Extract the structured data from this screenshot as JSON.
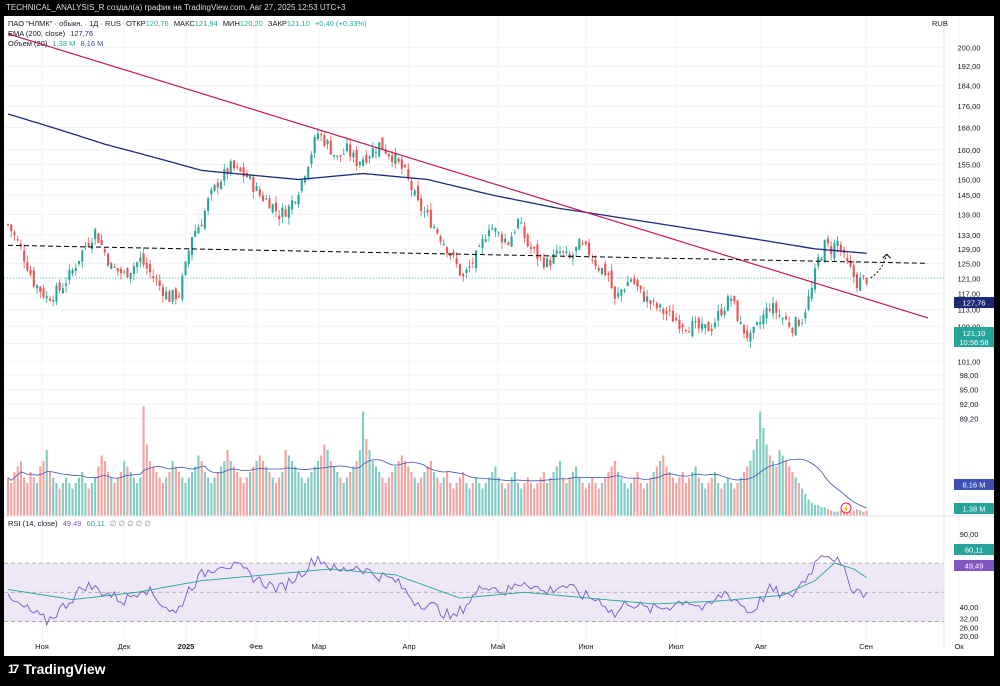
{
  "header": {
    "caption": "TECHNICAL_ANALYSIS_R создал(а) график на TradingView.com, Авг 27, 2025 12:53 UTC+3"
  },
  "legend": {
    "symbol": "ПАО \"НЛМК\" · обыкн. · 1Д · RUS",
    "open_label": "ОТКР",
    "open": "120,76",
    "high_label": "МАКС",
    "high": "121,94",
    "low_label": "МИН",
    "low": "120,20",
    "close_label": "ЗАКР",
    "close": "121,10",
    "change": "+0,40 (+0,33%)",
    "ema_label": "EMA (200, close)",
    "ema_value": "127,76",
    "vol_label": "Объем (20)",
    "vol_value_1": "1,38 M",
    "vol_value_2": "8,16 M",
    "rsi_label": "RSI (14, close)",
    "rsi_value_1": "49,49",
    "rsi_value_2": "60,11",
    "rsi_extra": "∅ ∅ ∅ ∅ ∅"
  },
  "currency": "RUB",
  "badges": {
    "price": "121,10",
    "countdown": "10:56:58",
    "ema": "127,76",
    "vol_ma": "8,16 M",
    "vol": "1,38 M",
    "rsi_ma": "60,11",
    "rsi": "49,49"
  },
  "branding": {
    "name": "TradingView",
    "mark": "17"
  },
  "colors": {
    "up": "#26a69a",
    "down": "#ef5350",
    "ema": "#1e2a78",
    "trendline": "#c2185b",
    "rsi_line": "#7e57c2",
    "rsi_ma": "#26a69a",
    "vol_ma": "#3f51b5",
    "rsi_band": "#ede7f6"
  },
  "chart_data": [
    {
      "type": "candlestick",
      "title": "ПАО \"НЛМК\" · обыкн. · 1Д · RUS",
      "currency": "RUB",
      "y_scale": "log",
      "ylim": [
        84,
        205
      ],
      "y_ticks": [
        "200,00",
        "192,00",
        "184,00",
        "176,00",
        "168,00",
        "160,00",
        "155,00",
        "150,00",
        "145,00",
        "139,00",
        "133,00",
        "129,00",
        "125,00",
        "121,00",
        "117,00",
        "113,00",
        "109,00",
        "105,00",
        "101,00",
        "98,00",
        "95,00",
        "92,00",
        "89,20"
      ],
      "x_ticks": [
        "Ноя",
        "Дек",
        "2025",
        "Фев",
        "Мар",
        "Апр",
        "Май",
        "Июн",
        "Июл",
        "Авг",
        "Сен",
        "Ок"
      ],
      "path": [
        [
          0,
          136
        ],
        [
          4,
          129
        ],
        [
          8,
          120
        ],
        [
          12,
          116
        ],
        [
          16,
          118
        ],
        [
          20,
          123
        ],
        [
          24,
          130
        ],
        [
          27,
          134
        ],
        [
          32,
          124
        ],
        [
          36,
          122
        ],
        [
          41,
          126
        ],
        [
          46,
          120
        ],
        [
          50,
          116
        ],
        [
          53,
          117
        ],
        [
          55,
          124
        ],
        [
          57,
          133
        ],
        [
          60,
          137
        ],
        [
          62,
          143
        ],
        [
          65,
          149
        ],
        [
          69,
          154
        ],
        [
          74,
          151
        ],
        [
          78,
          145
        ],
        [
          81,
          143
        ],
        [
          84,
          139
        ],
        [
          87,
          141
        ],
        [
          90,
          147
        ],
        [
          93,
          156
        ],
        [
          96,
          166
        ],
        [
          99,
          162
        ],
        [
          102,
          157
        ],
        [
          105,
          160
        ],
        [
          108,
          156
        ],
        [
          111,
          158
        ],
        [
          115,
          162
        ],
        [
          119,
          158
        ],
        [
          123,
          152
        ],
        [
          127,
          142
        ],
        [
          131,
          137
        ],
        [
          135,
          131
        ],
        [
          138,
          126
        ],
        [
          141,
          121
        ],
        [
          143,
          124
        ],
        [
          146,
          128
        ],
        [
          149,
          136
        ],
        [
          152,
          133
        ],
        [
          155,
          131
        ],
        [
          158,
          137
        ],
        [
          161,
          130
        ],
        [
          164,
          127
        ],
        [
          167,
          125
        ],
        [
          171,
          128
        ],
        [
          174,
          126
        ],
        [
          177,
          130
        ],
        [
          180,
          128
        ],
        [
          183,
          124
        ],
        [
          186,
          122
        ],
        [
          188,
          115
        ],
        [
          190,
          118
        ],
        [
          193,
          121
        ],
        [
          196,
          117
        ],
        [
          200,
          114
        ],
        [
          204,
          112
        ],
        [
          208,
          110
        ],
        [
          212,
          109
        ],
        [
          215,
          108
        ],
        [
          218,
          109
        ],
        [
          221,
          113
        ],
        [
          224,
          116
        ],
        [
          227,
          109
        ],
        [
          230,
          106
        ],
        [
          233,
          110
        ],
        [
          236,
          114
        ],
        [
          240,
          111
        ],
        [
          243,
          109
        ],
        [
          246,
          111
        ],
        [
          249,
          118
        ],
        [
          251,
          126
        ],
        [
          253,
          130
        ],
        [
          255,
          129
        ],
        [
          257,
          131
        ],
        [
          259,
          126
        ],
        [
          261,
          123
        ],
        [
          263,
          120
        ],
        [
          266,
          121
        ]
      ],
      "ema200": [
        [
          0,
          173
        ],
        [
          30,
          162
        ],
        [
          60,
          153
        ],
        [
          90,
          150
        ],
        [
          110,
          152
        ],
        [
          130,
          150
        ],
        [
          150,
          145
        ],
        [
          170,
          141
        ],
        [
          190,
          138
        ],
        [
          210,
          135
        ],
        [
          230,
          132
        ],
        [
          250,
          129
        ],
        [
          266,
          127.76
        ]
      ],
      "trendline": {
        "start": [
          0,
          206
        ],
        "end": [
          285,
          111
        ]
      },
      "resistance_line": {
        "start": [
          0,
          130
        ],
        "end": [
          285,
          125
        ]
      },
      "last_close": 121.1
    },
    {
      "type": "bar",
      "title": "Объем (20)",
      "values_note": "relative volume (max = 1)",
      "volumes": [
        0.35,
        0.3,
        0.4,
        0.45,
        0.5,
        0.35,
        0.3,
        0.4,
        0.35,
        0.3,
        0.45,
        0.5,
        0.6,
        0.4,
        0.35,
        0.3,
        0.25,
        0.3,
        0.35,
        0.3,
        0.25,
        0.3,
        0.35,
        0.4,
        0.3,
        0.25,
        0.3,
        0.35,
        0.45,
        0.55,
        0.5,
        0.4,
        0.35,
        0.3,
        0.35,
        0.4,
        0.5,
        0.45,
        0.4,
        0.35,
        0.3,
        0.35,
        1.0,
        0.65,
        0.5,
        0.45,
        0.4,
        0.35,
        0.3,
        0.35,
        0.4,
        0.5,
        0.45,
        0.4,
        0.35,
        0.3,
        0.35,
        0.4,
        0.45,
        0.55,
        0.5,
        0.4,
        0.35,
        0.3,
        0.35,
        0.4,
        0.45,
        0.5,
        0.6,
        0.5,
        0.45,
        0.4,
        0.35,
        0.3,
        0.35,
        0.4,
        0.45,
        0.5,
        0.55,
        0.5,
        0.45,
        0.4,
        0.35,
        0.3,
        0.35,
        0.4,
        0.6,
        0.55,
        0.5,
        0.45,
        0.4,
        0.35,
        0.3,
        0.35,
        0.4,
        0.45,
        0.5,
        0.55,
        0.65,
        0.6,
        0.5,
        0.45,
        0.4,
        0.35,
        0.3,
        0.35,
        0.4,
        0.45,
        0.5,
        0.6,
        0.95,
        0.7,
        0.6,
        0.5,
        0.45,
        0.4,
        0.35,
        0.3,
        0.35,
        0.4,
        0.45,
        0.5,
        0.55,
        0.5,
        0.45,
        0.4,
        0.35,
        0.3,
        0.35,
        0.4,
        0.45,
        0.5,
        0.4,
        0.35,
        0.3,
        0.35,
        0.4,
        0.3,
        0.25,
        0.3,
        0.35,
        0.4,
        0.3,
        0.25,
        0.3,
        0.35,
        0.3,
        0.25,
        0.3,
        0.35,
        0.4,
        0.45,
        0.35,
        0.3,
        0.25,
        0.3,
        0.35,
        0.4,
        0.3,
        0.25,
        0.3,
        0.35,
        0.3,
        0.25,
        0.3,
        0.35,
        0.4,
        0.3,
        0.35,
        0.4,
        0.45,
        0.5,
        0.35,
        0.3,
        0.35,
        0.4,
        0.45,
        0.35,
        0.3,
        0.25,
        0.3,
        0.35,
        0.3,
        0.25,
        0.3,
        0.35,
        0.4,
        0.45,
        0.5,
        0.4,
        0.35,
        0.3,
        0.25,
        0.3,
        0.35,
        0.4,
        0.3,
        0.25,
        0.3,
        0.35,
        0.4,
        0.45,
        0.5,
        0.55,
        0.45,
        0.4,
        0.35,
        0.3,
        0.35,
        0.4,
        0.3,
        0.35,
        0.4,
        0.45,
        0.35,
        0.3,
        0.25,
        0.3,
        0.35,
        0.4,
        0.3,
        0.25,
        0.3,
        0.35,
        0.3,
        0.25,
        0.3,
        0.35,
        0.4,
        0.45,
        0.5,
        0.6,
        0.7,
        0.95,
        0.8,
        0.65,
        0.55,
        0.5,
        0.45,
        0.6,
        0.55,
        0.5,
        0.45,
        0.4,
        0.35,
        0.3,
        0.25,
        0.2,
        0.15,
        0.12,
        0.1,
        0.1,
        0.08,
        0.08,
        0.06,
        0.05,
        0.04,
        0.04,
        0.05,
        0.06,
        0.05,
        0.04,
        0.05,
        0.06,
        0.05,
        0.04,
        0.05,
        0.04
      ]
    },
    {
      "type": "line",
      "title": "RSI (14, close)",
      "ylim": [
        20,
        80
      ],
      "y_ticks": [
        "90,00",
        "70,00",
        "60,11",
        "49,49",
        "40,00",
        "32,00",
        "26,00",
        "20,00"
      ],
      "band": [
        30,
        70
      ],
      "rsi": [
        [
          0,
          45
        ],
        [
          6,
          38
        ],
        [
          12,
          30
        ],
        [
          18,
          42
        ],
        [
          24,
          55
        ],
        [
          30,
          50
        ],
        [
          36,
          44
        ],
        [
          42,
          54
        ],
        [
          48,
          42
        ],
        [
          52,
          35
        ],
        [
          56,
          52
        ],
        [
          60,
          62
        ],
        [
          66,
          70
        ],
        [
          72,
          66
        ],
        [
          78,
          58
        ],
        [
          84,
          52
        ],
        [
          90,
          62
        ],
        [
          96,
          74
        ],
        [
          102,
          64
        ],
        [
          108,
          68
        ],
        [
          114,
          62
        ],
        [
          120,
          58
        ],
        [
          126,
          44
        ],
        [
          132,
          40
        ],
        [
          138,
          32
        ],
        [
          142,
          42
        ],
        [
          148,
          56
        ],
        [
          154,
          50
        ],
        [
          160,
          58
        ],
        [
          166,
          50
        ],
        [
          172,
          55
        ],
        [
          178,
          48
        ],
        [
          184,
          44
        ],
        [
          188,
          34
        ],
        [
          192,
          44
        ],
        [
          198,
          38
        ],
        [
          204,
          40
        ],
        [
          210,
          45
        ],
        [
          216,
          38
        ],
        [
          222,
          50
        ],
        [
          226,
          44
        ],
        [
          230,
          36
        ],
        [
          236,
          52
        ],
        [
          242,
          46
        ],
        [
          248,
          62
        ],
        [
          252,
          78
        ],
        [
          256,
          74
        ],
        [
          259,
          64
        ],
        [
          262,
          52
        ],
        [
          266,
          49.49
        ]
      ],
      "rsi_ma": [
        [
          0,
          52
        ],
        [
          20,
          45
        ],
        [
          40,
          50
        ],
        [
          60,
          58
        ],
        [
          80,
          62
        ],
        [
          100,
          66
        ],
        [
          120,
          62
        ],
        [
          140,
          46
        ],
        [
          160,
          50
        ],
        [
          180,
          46
        ],
        [
          200,
          42
        ],
        [
          220,
          44
        ],
        [
          240,
          48
        ],
        [
          250,
          58
        ],
        [
          256,
          70
        ],
        [
          262,
          66
        ],
        [
          266,
          60.11
        ]
      ]
    }
  ]
}
